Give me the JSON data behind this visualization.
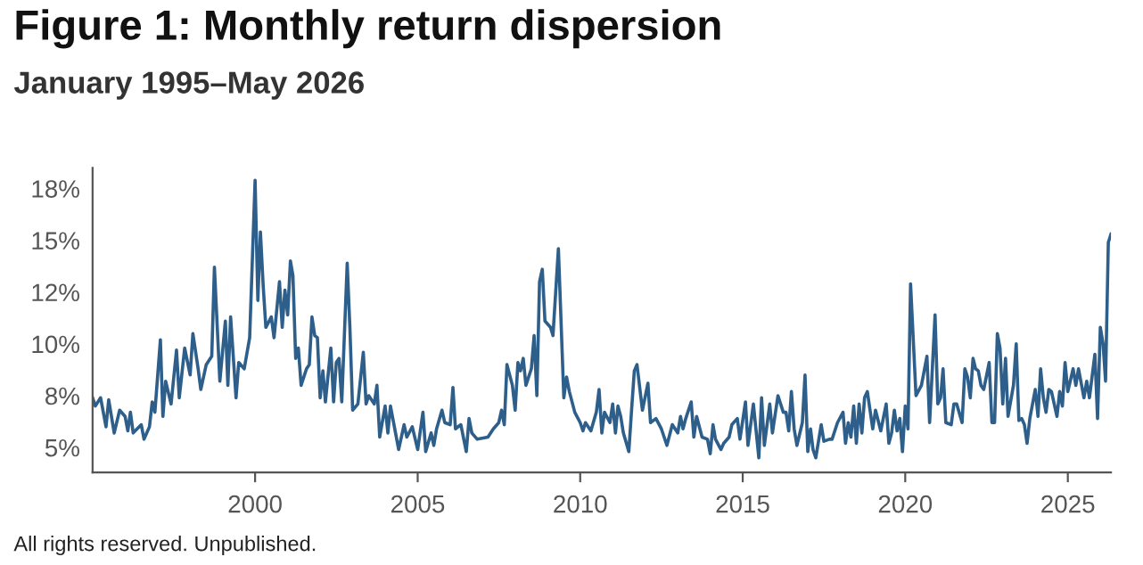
{
  "chart_data": {
    "type": "line",
    "title": "Figure 1: Monthly return dispersion",
    "subtitle": "January 1995–May 2026",
    "annotations": [
      "All rights reserved. Unpublished."
    ],
    "xlim": [
      "1995-01",
      "2026-05"
    ],
    "xticks": [
      "2000",
      "2005",
      "2010",
      "2015",
      "2020",
      "2025"
    ],
    "ylim": [
      3.8,
      18.5
    ],
    "yticks": [
      {
        "value": 5,
        "label": "5%"
      },
      {
        "value": 7.5,
        "label": "8%"
      },
      {
        "value": 10,
        "label": "10%"
      },
      {
        "value": 12.5,
        "label": "12%"
      },
      {
        "value": 15,
        "label": "15%"
      },
      {
        "value": 17.5,
        "label": "18%"
      }
    ],
    "grid": false,
    "legend": false,
    "marker": "none",
    "line_style": "solid",
    "series": [
      {
        "color": "#2e5f8a",
        "x": [
          "1995-01",
          "1995-02",
          "1995-04",
          "1995-06",
          "1995-07",
          "1995-09",
          "1995-11",
          "1996-01",
          "1996-02",
          "1996-03",
          "1996-04",
          "1996-07",
          "1996-08",
          "1996-09",
          "1996-10",
          "1996-11",
          "1996-12",
          "1997-02",
          "1997-03",
          "1997-04",
          "1997-06",
          "1997-08",
          "1997-09",
          "1997-11",
          "1998-01",
          "1998-02",
          "1998-04",
          "1998-05",
          "1998-07",
          "1998-09",
          "1998-10",
          "1998-12",
          "1999-02",
          "1999-03",
          "1999-04",
          "1999-06",
          "1999-07",
          "1999-09",
          "1999-11",
          "2000-01",
          "2000-02",
          "2000-03",
          "2000-04",
          "2000-05",
          "2000-07",
          "2000-08",
          "2000-10",
          "2000-11",
          "2000-12",
          "2001-01",
          "2001-02",
          "2001-03",
          "2001-04",
          "2001-05",
          "2001-06",
          "2001-08",
          "2001-09",
          "2001-10",
          "2001-11",
          "2001-12",
          "2002-01",
          "2002-02",
          "2002-03",
          "2002-05",
          "2002-06",
          "2002-07",
          "2002-08",
          "2002-09",
          "2002-11",
          "2002-12",
          "2003-01",
          "2003-03",
          "2003-05",
          "2003-06",
          "2003-07",
          "2003-09",
          "2003-10",
          "2003-11",
          "2004-01",
          "2004-02",
          "2004-03",
          "2004-06",
          "2004-08",
          "2004-09",
          "2004-11",
          "2005-01",
          "2005-03",
          "2005-04",
          "2005-06",
          "2005-07",
          "2005-08",
          "2005-10",
          "2005-11",
          "2006-01",
          "2006-02",
          "2006-03",
          "2006-05",
          "2006-07",
          "2006-08",
          "2006-09",
          "2006-11",
          "2007-03",
          "2007-05",
          "2007-07",
          "2007-08",
          "2007-09",
          "2007-10",
          "2007-12",
          "2008-01",
          "2008-02",
          "2008-03",
          "2008-04",
          "2008-05",
          "2008-07",
          "2008-08",
          "2008-09",
          "2008-10",
          "2008-11",
          "2008-12",
          "2009-02",
          "2009-03",
          "2009-05",
          "2009-07",
          "2009-08",
          "2009-09",
          "2009-11",
          "2010-01",
          "2010-02",
          "2010-03",
          "2010-05",
          "2010-07",
          "2010-08",
          "2010-09",
          "2010-10",
          "2010-12",
          "2011-01",
          "2011-02",
          "2011-03",
          "2011-04",
          "2011-05",
          "2011-07",
          "2011-08",
          "2011-09",
          "2011-10",
          "2011-12",
          "2012-02",
          "2012-03",
          "2012-05",
          "2012-07",
          "2012-09",
          "2012-11",
          "2013-01",
          "2013-02",
          "2013-03",
          "2013-04",
          "2013-06",
          "2013-07",
          "2013-08",
          "2013-10",
          "2013-12",
          "2014-01",
          "2014-02",
          "2014-03",
          "2014-05",
          "2014-06",
          "2014-08",
          "2014-09",
          "2014-11",
          "2014-12",
          "2015-02",
          "2015-03",
          "2015-05",
          "2015-07",
          "2015-08",
          "2015-09",
          "2015-11",
          "2015-12",
          "2016-02",
          "2016-04",
          "2016-05",
          "2016-06",
          "2016-07",
          "2016-08",
          "2016-09",
          "2016-11",
          "2016-12",
          "2017-01",
          "2017-02",
          "2017-03",
          "2017-04",
          "2017-06",
          "2017-07",
          "2017-09",
          "2017-10",
          "2017-12",
          "2018-02",
          "2018-03",
          "2018-04",
          "2018-05",
          "2018-06",
          "2018-07",
          "2018-08",
          "2018-09",
          "2018-10",
          "2018-11",
          "2019-01",
          "2019-02",
          "2019-04",
          "2019-06",
          "2019-07",
          "2019-08",
          "2019-09",
          "2019-10",
          "2019-11",
          "2019-12",
          "2020-01",
          "2020-02",
          "2020-03",
          "2020-05",
          "2020-07",
          "2020-09",
          "2020-10",
          "2020-12",
          "2021-01",
          "2021-02",
          "2021-03",
          "2021-04",
          "2021-06",
          "2021-07",
          "2021-08",
          "2021-10",
          "2021-11",
          "2021-12",
          "2022-01",
          "2022-02",
          "2022-03",
          "2022-04",
          "2022-05",
          "2022-06",
          "2022-08",
          "2022-09",
          "2022-10",
          "2022-11",
          "2022-12",
          "2023-01",
          "2023-02",
          "2023-03",
          "2023-05",
          "2023-06",
          "2023-07",
          "2023-08",
          "2023-09",
          "2023-10",
          "2023-11",
          "2024-01",
          "2024-02",
          "2024-03",
          "2024-04",
          "2024-05",
          "2024-06",
          "2024-07",
          "2024-09",
          "2024-10",
          "2024-11",
          "2024-12",
          "2025-01",
          "2025-03",
          "2025-04",
          "2025-05",
          "2025-07",
          "2025-08",
          "2025-09",
          "2025-11",
          "2025-12",
          "2026-01",
          "2026-02",
          "2026-03",
          "2026-04",
          "2026-05"
        ],
        "values": [
          7.4,
          7.0,
          7.4,
          6.0,
          7.3,
          5.7,
          6.8,
          6.5,
          5.8,
          6.7,
          5.7,
          6.1,
          5.4,
          5.7,
          6.0,
          7.2,
          6.7,
          10.2,
          6.5,
          8.2,
          7.1,
          9.7,
          7.4,
          9.8,
          8.5,
          10.5,
          8.8,
          7.8,
          9.0,
          9.4,
          13.7,
          8.2,
          11.1,
          8.0,
          11.3,
          7.4,
          9.1,
          8.8,
          10.3,
          17.9,
          12.1,
          15.4,
          12.8,
          10.8,
          11.3,
          10.3,
          13.0,
          10.8,
          12.6,
          11.4,
          14.0,
          13.3,
          9.3,
          9.8,
          8.0,
          8.8,
          9.0,
          11.3,
          10.4,
          10.3,
          7.4,
          8.7,
          7.2,
          9.8,
          7.2,
          9.1,
          9.3,
          7.2,
          13.9,
          10.8,
          6.8,
          7.1,
          9.6,
          7.1,
          7.5,
          7.1,
          8.0,
          5.5,
          7.0,
          5.7,
          7.0,
          4.9,
          6.1,
          5.5,
          6.0,
          4.9,
          6.7,
          4.8,
          5.7,
          5.1,
          5.9,
          6.8,
          6.2,
          6.1,
          7.9,
          5.9,
          6.1,
          4.8,
          6.4,
          5.7,
          5.4,
          5.5,
          5.9,
          6.2,
          6.8,
          6.1,
          9.0,
          8.0,
          6.8,
          9.1,
          8.7,
          9.3,
          8.0,
          8.8,
          10.4,
          7.5,
          13.0,
          13.6,
          11.1,
          10.8,
          10.4,
          14.6,
          7.4,
          8.4,
          7.7,
          6.7,
          6.2,
          5.8,
          6.2,
          5.8,
          6.7,
          7.8,
          5.7,
          6.7,
          6.2,
          7.1,
          5.7,
          7.0,
          6.5,
          5.7,
          4.8,
          6.8,
          8.7,
          9.0,
          6.8,
          8.1,
          6.2,
          6.4,
          5.9,
          5.1,
          6.1,
          5.7,
          6.5,
          5.9,
          6.4,
          7.2,
          5.5,
          6.5,
          5.5,
          5.4,
          4.7,
          6.1,
          5.4,
          4.9,
          5.2,
          5.5,
          6.1,
          6.4,
          5.4,
          7.2,
          5.1,
          7.1,
          4.5,
          7.4,
          5.1,
          7.1,
          5.7,
          7.5,
          6.7,
          6.7,
          5.8,
          7.7,
          5.9,
          5.1,
          6.2,
          8.5,
          4.8,
          5.9,
          4.9,
          4.5,
          6.1,
          5.3,
          5.4,
          5.4,
          6.2,
          6.7,
          5.2,
          6.2,
          5.5,
          7.0,
          5.2,
          7.1,
          5.7,
          7.4,
          7.7,
          5.9,
          6.8,
          5.8,
          7.1,
          5.2,
          5.7,
          6.8,
          5.8,
          6.4,
          4.8,
          7.0,
          5.9,
          12.9,
          7.5,
          8.0,
          9.4,
          6.2,
          11.4,
          7.1,
          7.4,
          8.8,
          6.2,
          6.1,
          7.1,
          7.1,
          6.2,
          8.8,
          8.4,
          7.4,
          9.3,
          8.8,
          8.7,
          8.0,
          7.8,
          9.1,
          6.2,
          6.2,
          10.5,
          9.8,
          7.1,
          9.3,
          6.5,
          8.0,
          10.0,
          6.3,
          6.4,
          6.1,
          5.2,
          6.4,
          7.8,
          6.5,
          8.8,
          7.4,
          6.7,
          7.8,
          7.7,
          6.5,
          7.7,
          7.0,
          9.1,
          7.7,
          8.8,
          8.0,
          8.8,
          7.4,
          8.2,
          7.4,
          9.5,
          6.4,
          10.8,
          10.0,
          8.2,
          14.9,
          15.3
        ]
      }
    ]
  }
}
